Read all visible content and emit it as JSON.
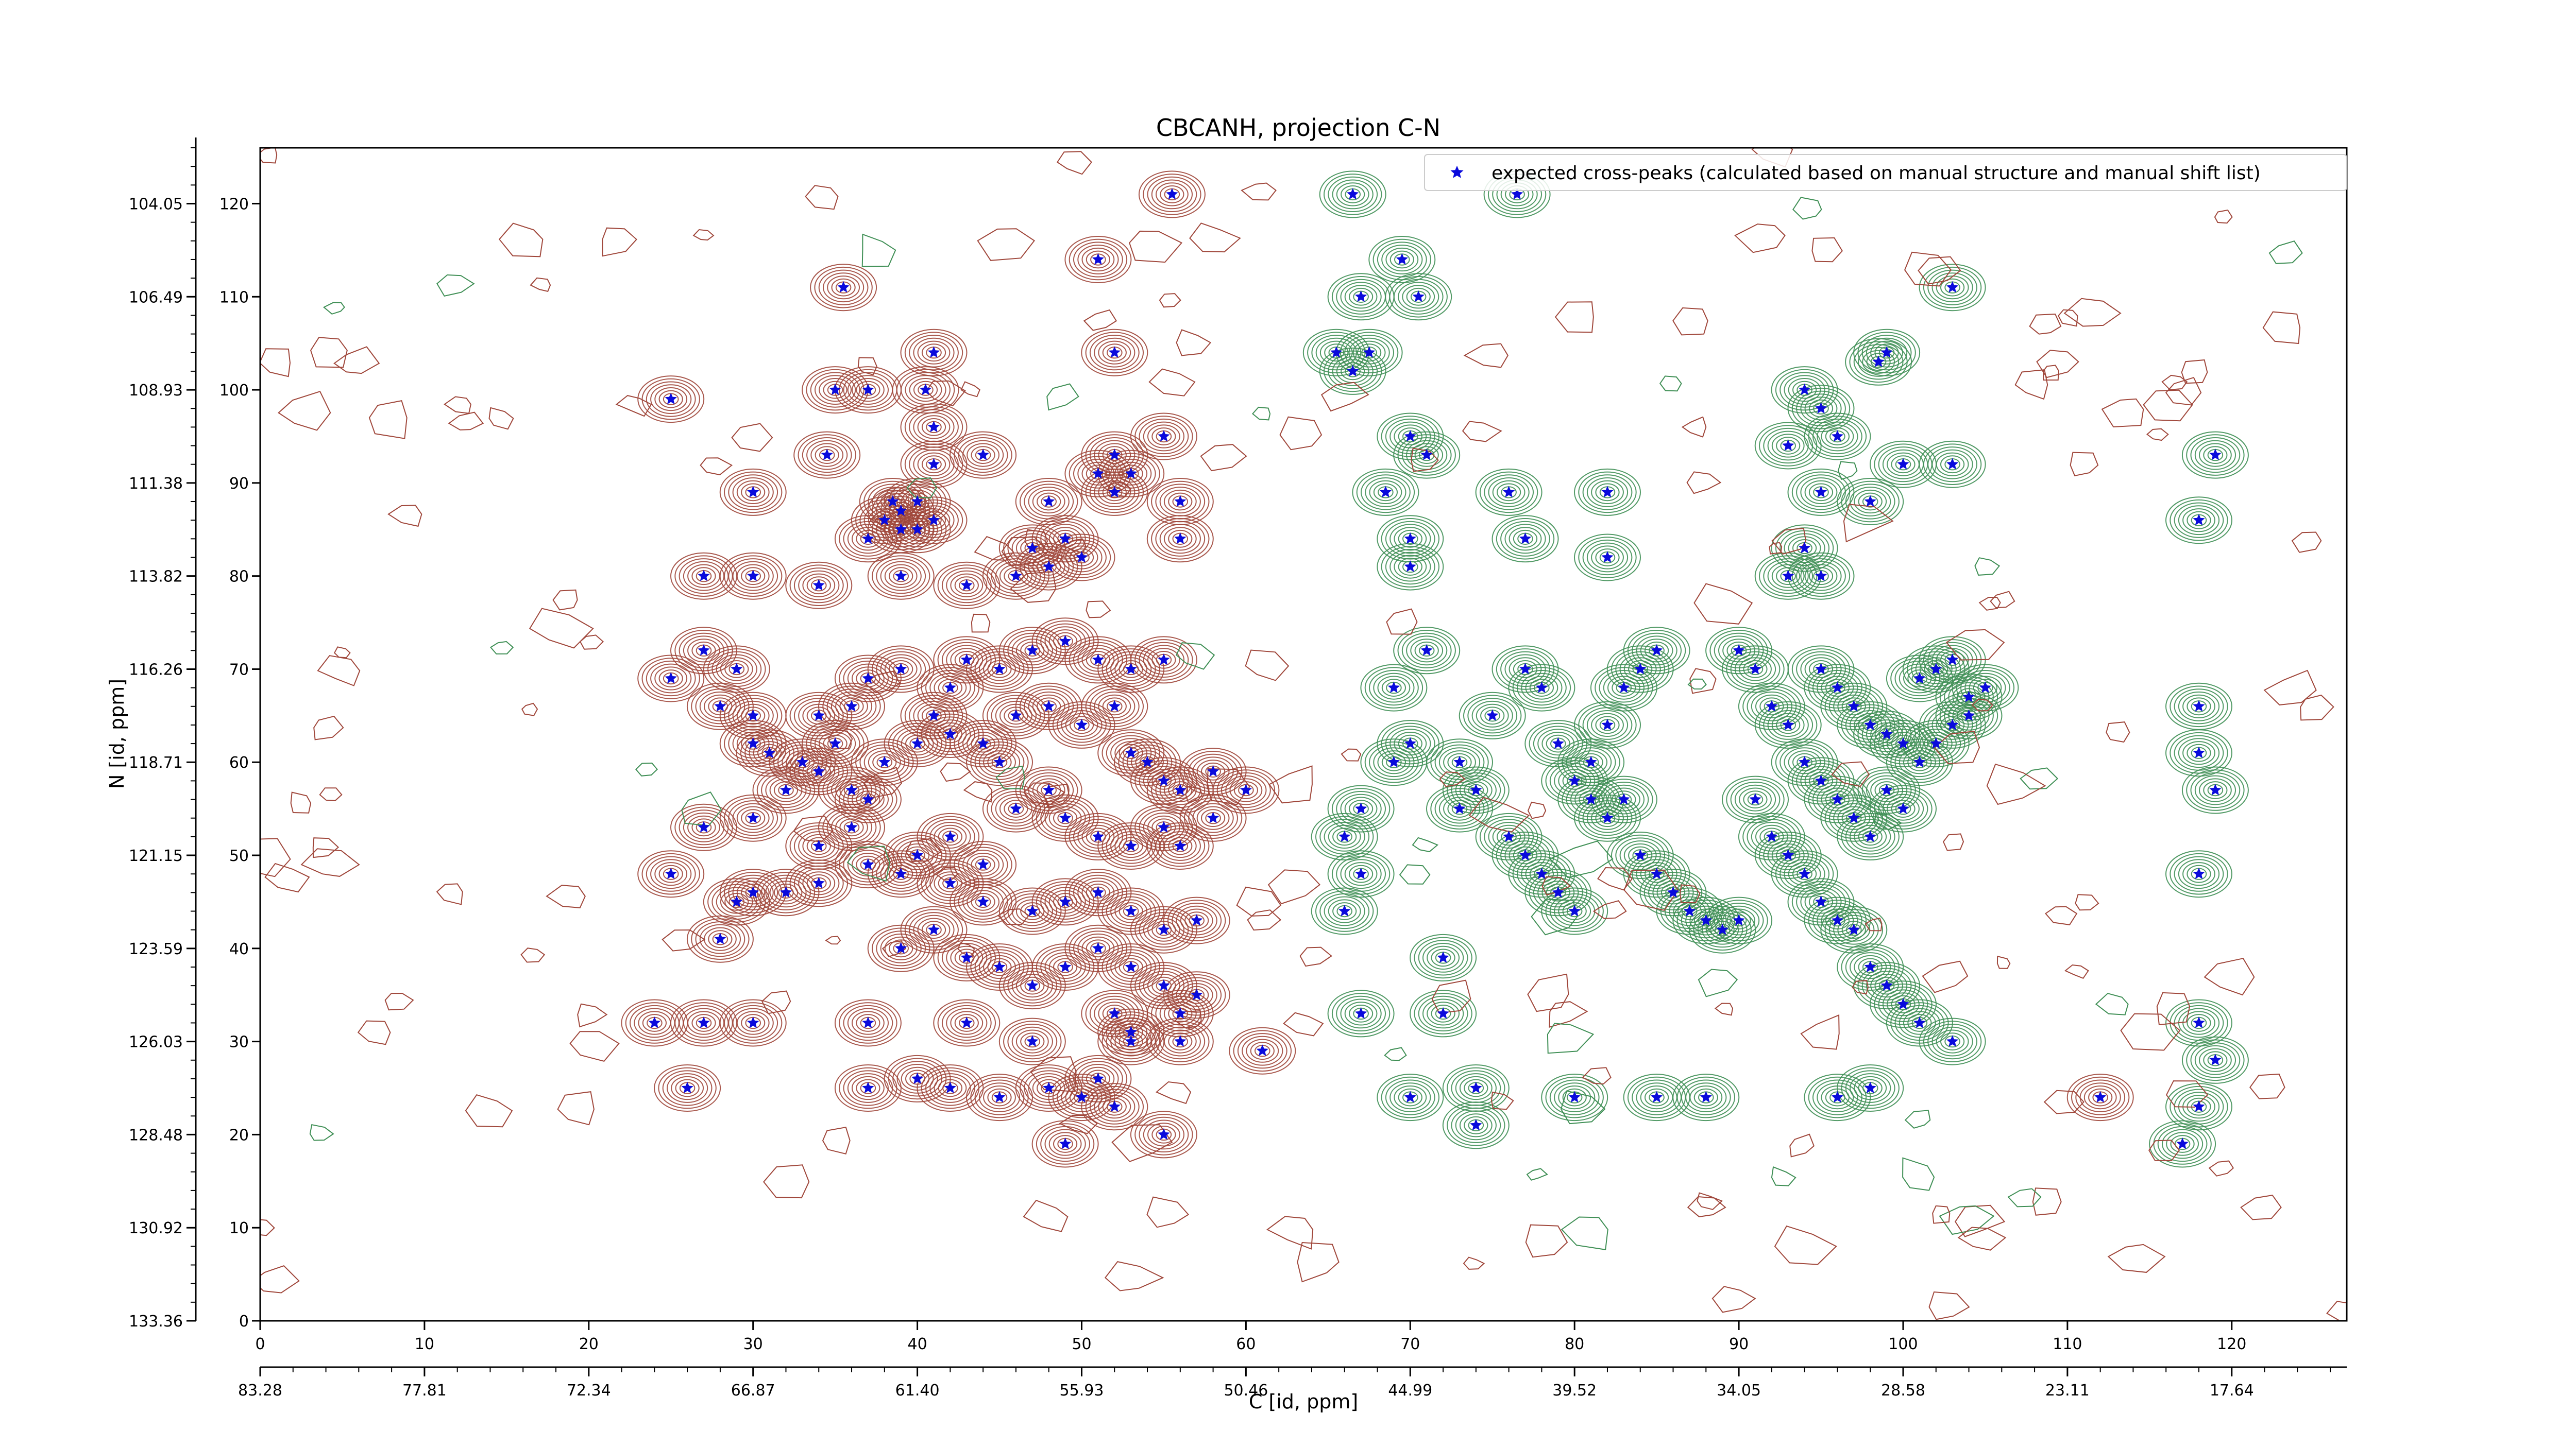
{
  "chart_data": {
    "type": "scatter",
    "title": "CBCANH, projection C-N",
    "xlabel": "C [id, ppm]",
    "ylabel": "N [id, ppm]",
    "xlim": [
      0,
      127
    ],
    "ylim": [
      0,
      126
    ],
    "grid": false,
    "legend_position": "top-right",
    "x_ticks_index": [
      "0",
      "10",
      "20",
      "30",
      "40",
      "50",
      "60",
      "70",
      "80",
      "90",
      "100",
      "110",
      "120"
    ],
    "x_ticks_ppm": [
      "83.28",
      "77.81",
      "72.34",
      "66.87",
      "61.40",
      "55.93",
      "50.46",
      "44.99",
      "39.52",
      "34.05",
      "28.58",
      "23.11",
      "17.64"
    ],
    "y_ticks_index": [
      "0",
      "10",
      "20",
      "30",
      "40",
      "50",
      "60",
      "70",
      "80",
      "90",
      "100",
      "110",
      "120"
    ],
    "y_ticks_ppm": [
      "133.36",
      "130.92",
      "128.48",
      "126.03",
      "123.59",
      "121.15",
      "118.71",
      "116.26",
      "113.82",
      "111.38",
      "108.93",
      "106.49",
      "104.05"
    ],
    "colors": {
      "positive_contour": "#a0473b",
      "negative_contour": "#3f8f55",
      "marker": "#0a0adc"
    },
    "series": [
      {
        "name": "expected cross-peaks (calculated based on manual structure and manual shift list)",
        "marker": "star",
        "points": [
          [
            55.5,
            121
          ],
          [
            66.5,
            121
          ],
          [
            51,
            114
          ],
          [
            52,
            104
          ],
          [
            35.5,
            111
          ],
          [
            69.5,
            114
          ],
          [
            70.5,
            110
          ],
          [
            67,
            110
          ],
          [
            103,
            111
          ],
          [
            76.5,
            121
          ],
          [
            25,
            99
          ],
          [
            35,
            100
          ],
          [
            37,
            100
          ],
          [
            41,
            104
          ],
          [
            65.5,
            104
          ],
          [
            67.5,
            104
          ],
          [
            66.5,
            102
          ],
          [
            99,
            104
          ],
          [
            98.5,
            103
          ],
          [
            94,
            100
          ],
          [
            95,
            98
          ],
          [
            40.5,
            100
          ],
          [
            41,
            96
          ],
          [
            34.5,
            93
          ],
          [
            44,
            93
          ],
          [
            41,
            92
          ],
          [
            52,
            93
          ],
          [
            55,
            95
          ],
          [
            51,
            91
          ],
          [
            52,
            89
          ],
          [
            53,
            91
          ],
          [
            48,
            88
          ],
          [
            56,
            88
          ],
          [
            70,
            95
          ],
          [
            71,
            93
          ],
          [
            38.5,
            88
          ],
          [
            40,
            88
          ],
          [
            39,
            87
          ],
          [
            38,
            86
          ],
          [
            40,
            85
          ],
          [
            41,
            86
          ],
          [
            39,
            85
          ],
          [
            30,
            89
          ],
          [
            37,
            84
          ],
          [
            47,
            83
          ],
          [
            49,
            84
          ],
          [
            56,
            84
          ],
          [
            68.5,
            89
          ],
          [
            70,
            84
          ],
          [
            76,
            89
          ],
          [
            82,
            89
          ],
          [
            27,
            80
          ],
          [
            30,
            80
          ],
          [
            34,
            79
          ],
          [
            39,
            80
          ],
          [
            43,
            79
          ],
          [
            46,
            80
          ],
          [
            48,
            81
          ],
          [
            50,
            82
          ],
          [
            70,
            81
          ],
          [
            77,
            84
          ],
          [
            82,
            82
          ],
          [
            94,
            83
          ],
          [
            93,
            80
          ],
          [
            95,
            80
          ],
          [
            103,
            92
          ],
          [
            100,
            92
          ],
          [
            93,
            94
          ],
          [
            96,
            95
          ],
          [
            95,
            89
          ],
          [
            98,
            88
          ],
          [
            119,
            93
          ],
          [
            118,
            86
          ],
          [
            25,
            69
          ],
          [
            27,
            72
          ],
          [
            29,
            70
          ],
          [
            28,
            66
          ],
          [
            30,
            65
          ],
          [
            30,
            62
          ],
          [
            31,
            61
          ],
          [
            33,
            60
          ],
          [
            34,
            65
          ],
          [
            36,
            66
          ],
          [
            37,
            69
          ],
          [
            39,
            70
          ],
          [
            42,
            68
          ],
          [
            43,
            71
          ],
          [
            45,
            70
          ],
          [
            47,
            72
          ],
          [
            49,
            73
          ],
          [
            51,
            71
          ],
          [
            53,
            70
          ],
          [
            55,
            71
          ],
          [
            32,
            57
          ],
          [
            34,
            59
          ],
          [
            35,
            62
          ],
          [
            36,
            57
          ],
          [
            37,
            56
          ],
          [
            38,
            60
          ],
          [
            40,
            62
          ],
          [
            41,
            65
          ],
          [
            42,
            63
          ],
          [
            44,
            62
          ],
          [
            45,
            60
          ],
          [
            46,
            65
          ],
          [
            48,
            66
          ],
          [
            50,
            64
          ],
          [
            52,
            66
          ],
          [
            53,
            61
          ],
          [
            54,
            60
          ],
          [
            55,
            58
          ],
          [
            56,
            57
          ],
          [
            58,
            59
          ],
          [
            40,
            50
          ],
          [
            42,
            52
          ],
          [
            44,
            49
          ],
          [
            46,
            55
          ],
          [
            48,
            57
          ],
          [
            49,
            54
          ],
          [
            51,
            52
          ],
          [
            53,
            51
          ],
          [
            55,
            53
          ],
          [
            56,
            51
          ],
          [
            58,
            54
          ],
          [
            60,
            57
          ],
          [
            36,
            53
          ],
          [
            34,
            51
          ],
          [
            30,
            54
          ],
          [
            27,
            53
          ],
          [
            29,
            45
          ],
          [
            30,
            46
          ],
          [
            32,
            46
          ],
          [
            34,
            47
          ],
          [
            37,
            49
          ],
          [
            39,
            48
          ],
          [
            42,
            47
          ],
          [
            44,
            45
          ],
          [
            47,
            44
          ],
          [
            49,
            45
          ],
          [
            51,
            46
          ],
          [
            53,
            44
          ],
          [
            55,
            42
          ],
          [
            57,
            43
          ],
          [
            25,
            48
          ],
          [
            28,
            41
          ],
          [
            39,
            40
          ],
          [
            41,
            42
          ],
          [
            43,
            39
          ],
          [
            45,
            38
          ],
          [
            47,
            36
          ],
          [
            49,
            38
          ],
          [
            51,
            40
          ],
          [
            53,
            38
          ],
          [
            55,
            36
          ],
          [
            57,
            35
          ],
          [
            52,
            33
          ],
          [
            56,
            33
          ],
          [
            53,
            31
          ],
          [
            24,
            32
          ],
          [
            27,
            32
          ],
          [
            30,
            32
          ],
          [
            37,
            32
          ],
          [
            43,
            32
          ],
          [
            47,
            30
          ],
          [
            53,
            30
          ],
          [
            56,
            30
          ],
          [
            61,
            29
          ],
          [
            26,
            25
          ],
          [
            37,
            25
          ],
          [
            40,
            26
          ],
          [
            42,
            25
          ],
          [
            45,
            24
          ],
          [
            48,
            25
          ],
          [
            50,
            24
          ],
          [
            51,
            26
          ],
          [
            52,
            23
          ],
          [
            49,
            19
          ],
          [
            55,
            20
          ],
          [
            66,
            44
          ],
          [
            67,
            48
          ],
          [
            66,
            52
          ],
          [
            67,
            55
          ],
          [
            69,
            60
          ],
          [
            70,
            62
          ],
          [
            69,
            68
          ],
          [
            71,
            72
          ],
          [
            73,
            60
          ],
          [
            73,
            55
          ],
          [
            74,
            57
          ],
          [
            75,
            65
          ],
          [
            77,
            70
          ],
          [
            78,
            68
          ],
          [
            79,
            62
          ],
          [
            80,
            58
          ],
          [
            81,
            60
          ],
          [
            82,
            64
          ],
          [
            83,
            68
          ],
          [
            84,
            70
          ],
          [
            85,
            72
          ],
          [
            76,
            52
          ],
          [
            77,
            50
          ],
          [
            78,
            48
          ],
          [
            79,
            46
          ],
          [
            80,
            44
          ],
          [
            81,
            56
          ],
          [
            82,
            54
          ],
          [
            83,
            56
          ],
          [
            84,
            50
          ],
          [
            85,
            48
          ],
          [
            86,
            46
          ],
          [
            87,
            44
          ],
          [
            88,
            43
          ],
          [
            89,
            42
          ],
          [
            90,
            43
          ],
          [
            72,
            39
          ],
          [
            72,
            33
          ],
          [
            67,
            33
          ],
          [
            74,
            21
          ],
          [
            70,
            24
          ],
          [
            74,
            25
          ],
          [
            80,
            24
          ],
          [
            85,
            24
          ],
          [
            88,
            24
          ],
          [
            96,
            24
          ],
          [
            98,
            25
          ],
          [
            112,
            24
          ],
          [
            90,
            72
          ],
          [
            91,
            70
          ],
          [
            92,
            66
          ],
          [
            93,
            64
          ],
          [
            94,
            60
          ],
          [
            95,
            58
          ],
          [
            96,
            56
          ],
          [
            97,
            54
          ],
          [
            98,
            52
          ],
          [
            99,
            57
          ],
          [
            100,
            55
          ],
          [
            101,
            60
          ],
          [
            102,
            62
          ],
          [
            103,
            64
          ],
          [
            104,
            65
          ],
          [
            105,
            68
          ],
          [
            91,
            56
          ],
          [
            92,
            52
          ],
          [
            93,
            50
          ],
          [
            94,
            48
          ],
          [
            95,
            45
          ],
          [
            96,
            43
          ],
          [
            97,
            42
          ],
          [
            98,
            38
          ],
          [
            99,
            36
          ],
          [
            100,
            34
          ],
          [
            101,
            32
          ],
          [
            103,
            30
          ],
          [
            95,
            70
          ],
          [
            96,
            68
          ],
          [
            97,
            66
          ],
          [
            98,
            64
          ],
          [
            99,
            63
          ],
          [
            100,
            62
          ],
          [
            101,
            69
          ],
          [
            102,
            70
          ],
          [
            103,
            71
          ],
          [
            104,
            67
          ],
          [
            118,
            66
          ],
          [
            118,
            61
          ],
          [
            119,
            57
          ],
          [
            118,
            48
          ],
          [
            118,
            32
          ],
          [
            118,
            23
          ],
          [
            117,
            19
          ],
          [
            119,
            28
          ]
        ]
      }
    ]
  },
  "legend": {
    "label": "expected cross-peaks (calculated based on manual structure and manual shift list)"
  }
}
